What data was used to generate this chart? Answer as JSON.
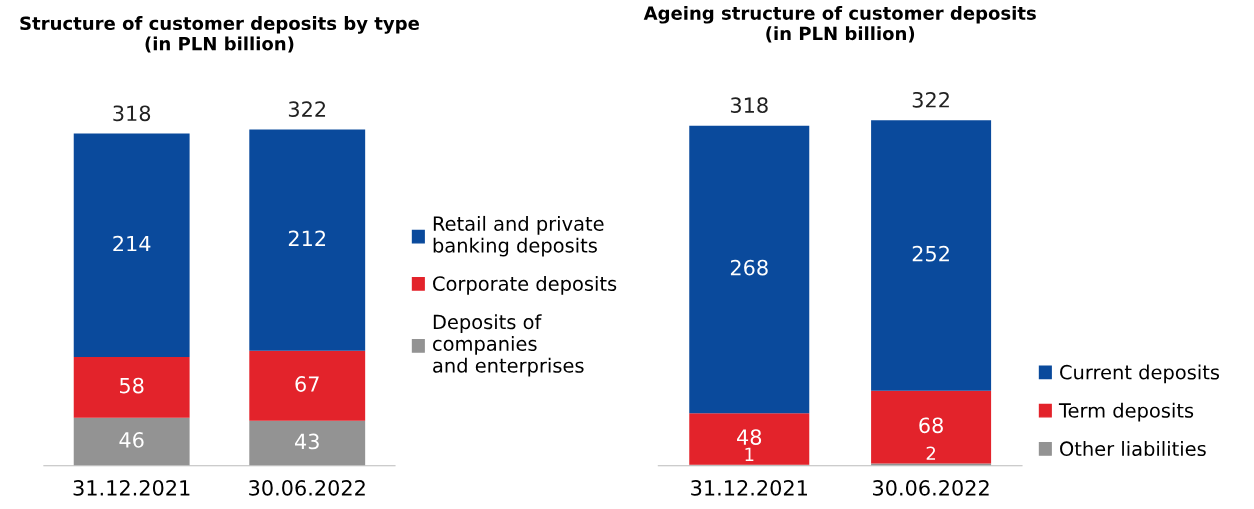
{
  "chart_data": [
    {
      "type": "bar",
      "title": "Structure of customer deposits by type\n(in PLN billion)",
      "categories": [
        "31.12.2021",
        "30.06.2022"
      ],
      "stacked": true,
      "data_labels": true,
      "totals": [
        "318",
        "322"
      ],
      "legend": "right",
      "grid": false,
      "series": [
        {
          "name": "Deposits of\ncompanies\nand enterprises",
          "color": "#939393",
          "values": [
            46,
            43
          ]
        },
        {
          "name": "Corporate deposits",
          "color": "#e3232b",
          "values": [
            58,
            67
          ]
        },
        {
          "name": "Retail and private\nbanking deposits",
          "color": "#0a4a9c",
          "values": [
            214,
            212
          ]
        }
      ]
    },
    {
      "type": "bar",
      "title": "Ageing structure of customer deposits\n(in PLN billion)",
      "categories": [
        "31.12.2021",
        "30.06.2022"
      ],
      "stacked": true,
      "data_labels": true,
      "totals": [
        "318",
        "322"
      ],
      "legend": "lower right",
      "grid": false,
      "series": [
        {
          "name": "Other liabilities",
          "color": "#939393",
          "values": [
            1,
            2
          ]
        },
        {
          "name": "Term deposits",
          "color": "#e3232b",
          "values": [
            48,
            68
          ]
        },
        {
          "name": "Current deposits",
          "color": "#0a4a9c",
          "values": [
            268,
            252
          ]
        }
      ]
    }
  ]
}
